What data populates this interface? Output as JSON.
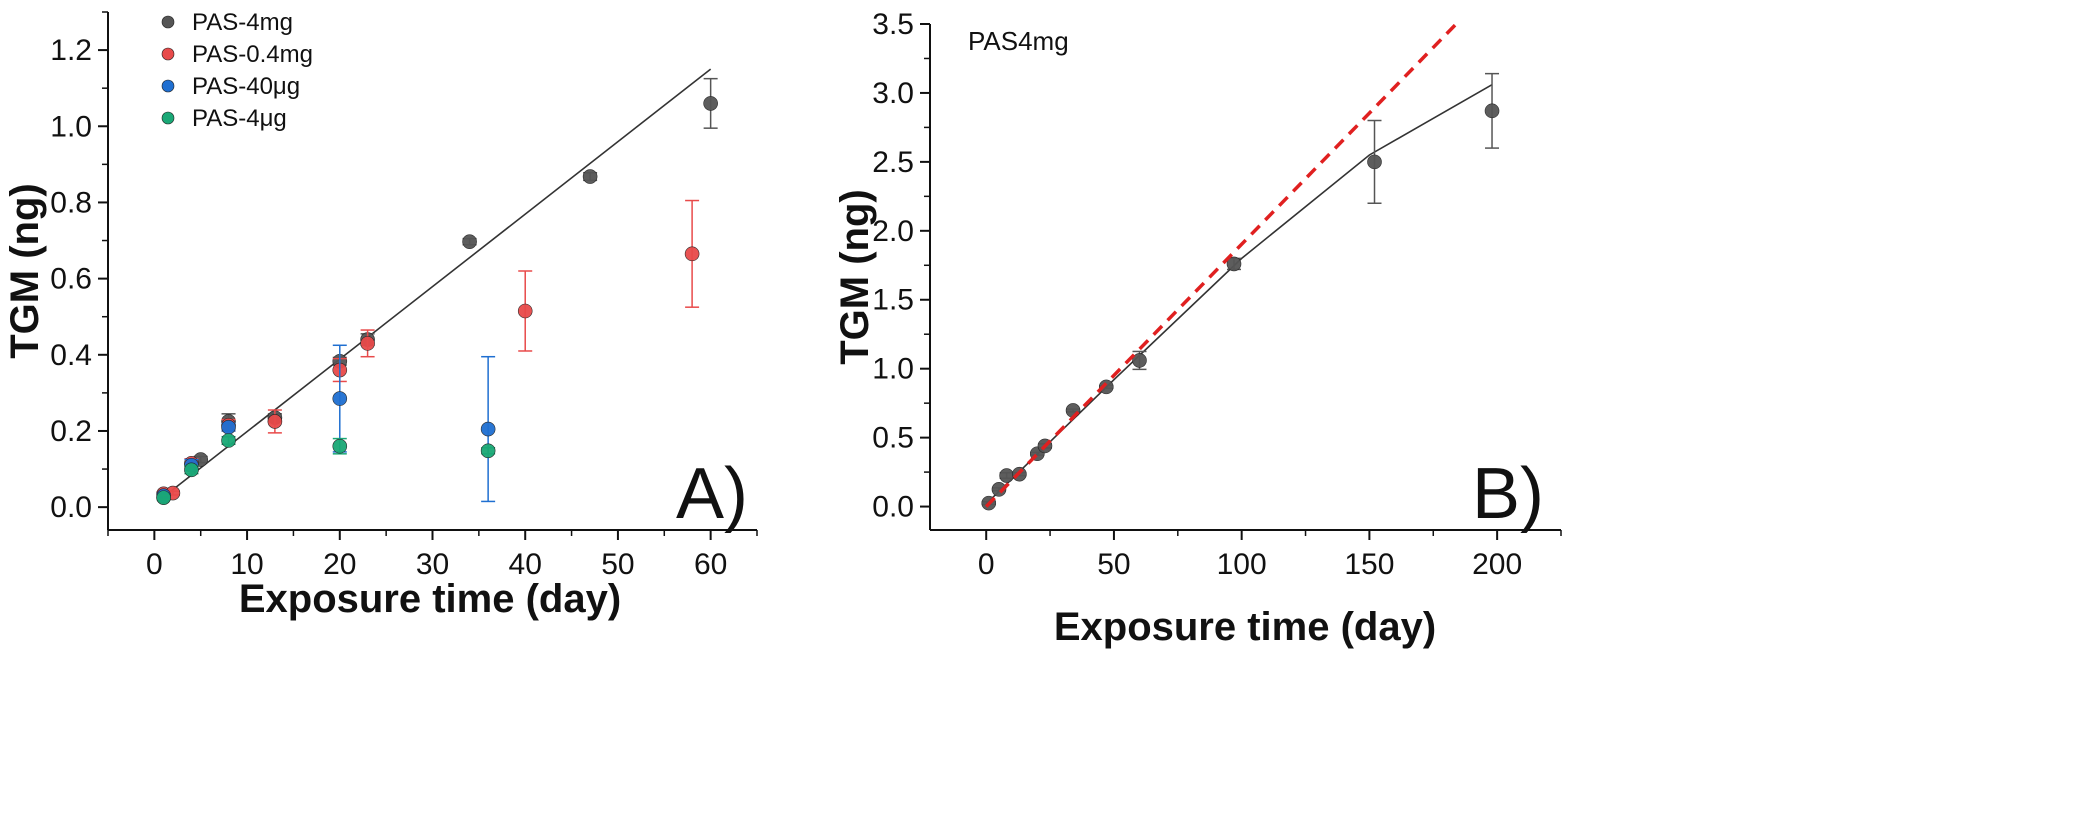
{
  "chart_data": [
    {
      "type": "scatter",
      "panel_label": "A)",
      "xlabel": "Exposure time (day)",
      "ylabel": "TGM (ng)",
      "xlim": [
        -5,
        65
      ],
      "ylim": [
        -0.06,
        1.3
      ],
      "xticks": [
        0,
        10,
        20,
        30,
        40,
        50,
        60
      ],
      "yticks": [
        0.0,
        0.2,
        0.4,
        0.6,
        0.8,
        1.0,
        1.2
      ],
      "grid": false,
      "legend_position": "top-left",
      "series": [
        {
          "name": "PAS-4mg",
          "color": "#555555",
          "points": [
            {
              "x": 1,
              "y": 0.025,
              "err": 0.005
            },
            {
              "x": 5,
              "y": 0.125,
              "err": 0.008
            },
            {
              "x": 8,
              "y": 0.225,
              "err": 0.02
            },
            {
              "x": 13,
              "y": 0.235,
              "err": 0.01
            },
            {
              "x": 20,
              "y": 0.383,
              "err": 0.01
            },
            {
              "x": 23,
              "y": 0.44,
              "err": 0.015
            },
            {
              "x": 34,
              "y": 0.697,
              "err": 0.008
            },
            {
              "x": 47,
              "y": 0.868,
              "err": 0.01
            },
            {
              "x": 60,
              "y": 1.06,
              "err": 0.065
            }
          ]
        },
        {
          "name": "PAS-0.4mg",
          "color": "#e84a4a",
          "points": [
            {
              "x": 1,
              "y": 0.035,
              "err": 0.005
            },
            {
              "x": 2,
              "y": 0.037,
              "err": 0.005
            },
            {
              "x": 4,
              "y": 0.115,
              "err": 0.012
            },
            {
              "x": 8,
              "y": 0.215,
              "err": 0.015
            },
            {
              "x": 13,
              "y": 0.225,
              "err": 0.03
            },
            {
              "x": 20,
              "y": 0.36,
              "err": 0.03
            },
            {
              "x": 23,
              "y": 0.43,
              "err": 0.035
            },
            {
              "x": 40,
              "y": 0.515,
              "err": 0.105
            },
            {
              "x": 58,
              "y": 0.665,
              "err": 0.14
            }
          ]
        },
        {
          "name": "PAS-40μg",
          "color": "#1f6fd1",
          "points": [
            {
              "x": 1,
              "y": 0.03,
              "err": 0.005
            },
            {
              "x": 4,
              "y": 0.11,
              "err": 0.015
            },
            {
              "x": 8,
              "y": 0.21,
              "err": 0.01
            },
            {
              "x": 20,
              "y": 0.285,
              "err": 0.14
            },
            {
              "x": 36,
              "y": 0.205,
              "err": 0.19
            }
          ]
        },
        {
          "name": "PAS-4μg",
          "color": "#1aa876",
          "points": [
            {
              "x": 1,
              "y": 0.025,
              "err": 0.005
            },
            {
              "x": 4,
              "y": 0.098,
              "err": 0.01
            },
            {
              "x": 8,
              "y": 0.175,
              "err": 0.01
            },
            {
              "x": 20,
              "y": 0.16,
              "err": 0.02
            },
            {
              "x": 36,
              "y": 0.148,
              "err": 0.008
            }
          ]
        }
      ],
      "fit_line": {
        "x": [
          1,
          60
        ],
        "y": [
          0.027,
          1.15
        ],
        "color": "#333333",
        "style": "solid"
      }
    },
    {
      "type": "scatter",
      "panel_label": "B)",
      "annotation": "PAS4mg",
      "xlabel": "Exposure time (day)",
      "ylabel": "TGM (ng)",
      "xlim": [
        -22,
        225
      ],
      "ylim": [
        -0.17,
        3.5
      ],
      "xticks": [
        0,
        50,
        100,
        150,
        200
      ],
      "yticks": [
        0.0,
        0.5,
        1.0,
        1.5,
        2.0,
        2.5,
        3.0,
        3.5
      ],
      "grid": false,
      "series": [
        {
          "name": "PAS4mg",
          "color": "#555555",
          "points": [
            {
              "x": 1,
              "y": 0.025,
              "err": 0.01
            },
            {
              "x": 5,
              "y": 0.125,
              "err": 0.01
            },
            {
              "x": 8,
              "y": 0.225,
              "err": 0.02
            },
            {
              "x": 13,
              "y": 0.235,
              "err": 0.01
            },
            {
              "x": 20,
              "y": 0.383,
              "err": 0.01
            },
            {
              "x": 23,
              "y": 0.44,
              "err": 0.015
            },
            {
              "x": 34,
              "y": 0.697,
              "err": 0.01
            },
            {
              "x": 47,
              "y": 0.868,
              "err": 0.01
            },
            {
              "x": 60,
              "y": 1.06,
              "err": 0.065
            },
            {
              "x": 97,
              "y": 1.76,
              "err": 0.04
            },
            {
              "x": 152,
              "y": 2.5,
              "err": 0.3
            },
            {
              "x": 198,
              "y": 2.87,
              "err": 0.27
            }
          ]
        }
      ],
      "fit_curve": {
        "x": [
          0,
          50,
          100,
          150,
          198
        ],
        "y": [
          0.02,
          0.92,
          1.8,
          2.55,
          3.06
        ],
        "color": "#333333",
        "style": "solid"
      },
      "linear_extrapolation": {
        "x": [
          0,
          185
        ],
        "y": [
          0.0,
          3.52
        ],
        "color": "#e02020",
        "style": "dashed"
      }
    }
  ]
}
